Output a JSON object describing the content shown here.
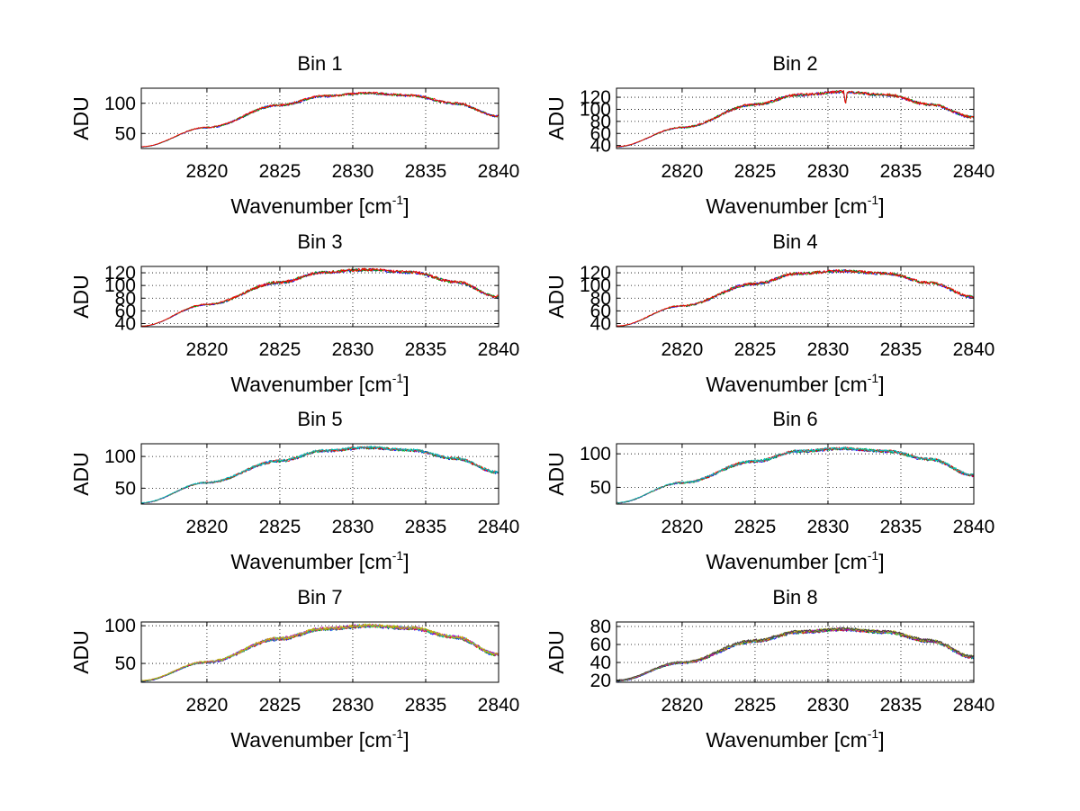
{
  "figure": {
    "background": "#ffffff"
  },
  "series_colors": [
    "#0000ff",
    "#00a000",
    "#ff0000",
    "#00bfbf",
    "#bf00bf",
    "#bfbf00",
    "#404040"
  ],
  "chart_data": [
    {
      "type": "line",
      "title": "Bin 1",
      "xlabel": "Wavenumber [cm",
      "xlabel_sup": "-1",
      "xlabel_suffix": "]",
      "ylabel": "ADU",
      "xlim": [
        2815.5,
        2840
      ],
      "ylim": [
        25,
        125
      ],
      "xticks": [
        2820,
        2825,
        2830,
        2835,
        2840
      ],
      "yticks": [
        50,
        100
      ],
      "grid": true,
      "series_count": 3,
      "profile": {
        "x": [
          2815.5,
          2820,
          2825,
          2828,
          2831,
          2834,
          2837,
          2840
        ],
        "y": [
          28,
          60,
          97,
          112,
          117,
          113,
          100,
          79
        ]
      },
      "noise": 2.0,
      "dips": []
    },
    {
      "type": "line",
      "title": "Bin 2",
      "xlabel": "Wavenumber [cm",
      "xlabel_sup": "-1",
      "xlabel_suffix": "]",
      "ylabel": "ADU",
      "xlim": [
        2815.5,
        2840
      ],
      "ylim": [
        35,
        135
      ],
      "xticks": [
        2820,
        2825,
        2830,
        2835,
        2840
      ],
      "yticks": [
        40,
        60,
        80,
        100,
        120
      ],
      "grid": true,
      "series_count": 3,
      "profile": {
        "x": [
          2815.5,
          2820,
          2825,
          2828,
          2831,
          2834,
          2837,
          2840
        ],
        "y": [
          38,
          70,
          108,
          124,
          129,
          124,
          108,
          87
        ]
      },
      "noise": 2.4,
      "dips": [
        {
          "x": 2831.2,
          "depth": 20
        }
      ]
    },
    {
      "type": "line",
      "title": "Bin 3",
      "xlabel": "Wavenumber [cm",
      "xlabel_sup": "-1",
      "xlabel_suffix": "]",
      "ylabel": "ADU",
      "xlim": [
        2815.5,
        2840
      ],
      "ylim": [
        35,
        130
      ],
      "xticks": [
        2820,
        2825,
        2830,
        2835,
        2840
      ],
      "yticks": [
        40,
        60,
        80,
        100,
        120
      ],
      "grid": true,
      "series_count": 3,
      "profile": {
        "x": [
          2815.5,
          2820,
          2825,
          2828,
          2831,
          2834,
          2837,
          2840
        ],
        "y": [
          36,
          70,
          105,
          121,
          125,
          121,
          106,
          82
        ]
      },
      "noise": 2.4,
      "dips": []
    },
    {
      "type": "line",
      "title": "Bin 4",
      "xlabel": "Wavenumber [cm",
      "xlabel_sup": "-1",
      "xlabel_suffix": "]",
      "ylabel": "ADU",
      "xlim": [
        2815.5,
        2840
      ],
      "ylim": [
        35,
        130
      ],
      "xticks": [
        2820,
        2825,
        2830,
        2835,
        2840
      ],
      "yticks": [
        40,
        60,
        80,
        100,
        120
      ],
      "grid": true,
      "series_count": 3,
      "profile": {
        "x": [
          2815.5,
          2820,
          2825,
          2828,
          2831,
          2834,
          2837,
          2840
        ],
        "y": [
          36,
          68,
          103,
          119,
          123,
          119,
          104,
          82
        ]
      },
      "noise": 2.4,
      "dips": []
    },
    {
      "type": "line",
      "title": "Bin 5",
      "xlabel": "Wavenumber [cm",
      "xlabel_sup": "-1",
      "xlabel_suffix": "]",
      "ylabel": "ADU",
      "xlim": [
        2815.5,
        2840
      ],
      "ylim": [
        25,
        120
      ],
      "xticks": [
        2820,
        2825,
        2830,
        2835,
        2840
      ],
      "yticks": [
        50,
        100
      ],
      "grid": true,
      "series_count": 4,
      "profile": {
        "x": [
          2815.5,
          2820,
          2825,
          2828,
          2831,
          2834,
          2837,
          2840
        ],
        "y": [
          27,
          59,
          93,
          109,
          114,
          110,
          97,
          75
        ]
      },
      "noise": 2.2,
      "dips": []
    },
    {
      "type": "line",
      "title": "Bin 6",
      "xlabel": "Wavenumber [cm",
      "xlabel_sup": "-1",
      "xlabel_suffix": "]",
      "ylabel": "ADU",
      "xlim": [
        2815.5,
        2840
      ],
      "ylim": [
        25,
        115
      ],
      "xticks": [
        2820,
        2825,
        2830,
        2835,
        2840
      ],
      "yticks": [
        50,
        100
      ],
      "grid": true,
      "series_count": 4,
      "profile": {
        "x": [
          2815.5,
          2820,
          2825,
          2828,
          2831,
          2834,
          2837,
          2840
        ],
        "y": [
          27,
          57,
          89,
          104,
          108,
          104,
          92,
          68
        ]
      },
      "noise": 2.2,
      "dips": []
    },
    {
      "type": "line",
      "title": "Bin 7",
      "xlabel": "Wavenumber [cm",
      "xlabel_sup": "-1",
      "xlabel_suffix": "]",
      "ylabel": "ADU",
      "xlim": [
        2815.5,
        2840
      ],
      "ylim": [
        25,
        105
      ],
      "xticks": [
        2820,
        2825,
        2830,
        2835,
        2840
      ],
      "yticks": [
        50,
        100
      ],
      "grid": true,
      "series_count": 6,
      "profile": {
        "x": [
          2815.5,
          2820,
          2825,
          2828,
          2831,
          2834,
          2837,
          2840
        ],
        "y": [
          27,
          52,
          83,
          96,
          100,
          97,
          85,
          62
        ]
      },
      "noise": 2.2,
      "dips": []
    },
    {
      "type": "line",
      "title": "Bin 8",
      "xlabel": "Wavenumber [cm",
      "xlabel_sup": "-1",
      "xlabel_suffix": "]",
      "ylabel": "ADU",
      "xlim": [
        2815.5,
        2840
      ],
      "ylim": [
        18,
        85
      ],
      "xticks": [
        2820,
        2825,
        2830,
        2835,
        2840
      ],
      "yticks": [
        20,
        40,
        60,
        80
      ],
      "grid": true,
      "series_count": 7,
      "profile": {
        "x": [
          2815.5,
          2820,
          2825,
          2828,
          2831,
          2834,
          2837,
          2840
        ],
        "y": [
          20,
          40,
          64,
          74,
          77,
          74,
          64,
          46
        ]
      },
      "noise": 1.6,
      "dips": []
    }
  ]
}
